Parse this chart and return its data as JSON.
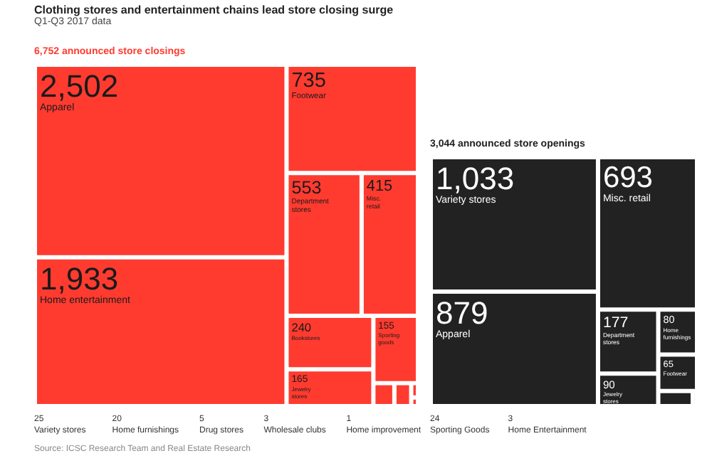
{
  "chart_data": [
    {
      "type": "other",
      "title": "Clothing stores and entertainment chains lead store closing surge",
      "subtitle": "Q1-Q3 2017 data",
      "annotations": [
        "Source: ICSC Research Team and Real Estate Research"
      ],
      "categories": [
        "Apparel",
        "Home entertainment",
        "Footwear",
        "Department stores",
        "Misc. retail",
        "Bookstores",
        "Jewelry stores",
        "Sporting goods",
        "Variety stores",
        "Home furnishings",
        "Drug stores",
        "Wholesale clubs",
        "Home improvement"
      ],
      "series": [
        {
          "name": "6,752 announced store closings",
          "color": "#ff3b30",
          "values": [
            2502,
            1933,
            735,
            553,
            415,
            240,
            165,
            155,
            25,
            20,
            5,
            3,
            1
          ],
          "value_labels": [
            "2,502",
            "1,933",
            "735",
            "553",
            "415",
            "240",
            "165",
            "155",
            "25",
            "20",
            "5",
            "3",
            "1"
          ]
        }
      ]
    },
    {
      "type": "other",
      "categories": [
        "Variety stores",
        "Apparel",
        "Misc. retail",
        "Department stores",
        "Jewelry stores",
        "Home furnishings",
        "Footwear",
        "Sporting Goods",
        "Home Entertainment"
      ],
      "series": [
        {
          "name": "3,044 announced store openings",
          "color": "#222222",
          "values": [
            1033,
            879,
            693,
            177,
            90,
            80,
            65,
            24,
            3
          ],
          "value_labels": [
            "1,033",
            "879",
            "693",
            "177",
            "90",
            "80",
            "65",
            "24",
            "3"
          ]
        }
      ]
    }
  ]
}
